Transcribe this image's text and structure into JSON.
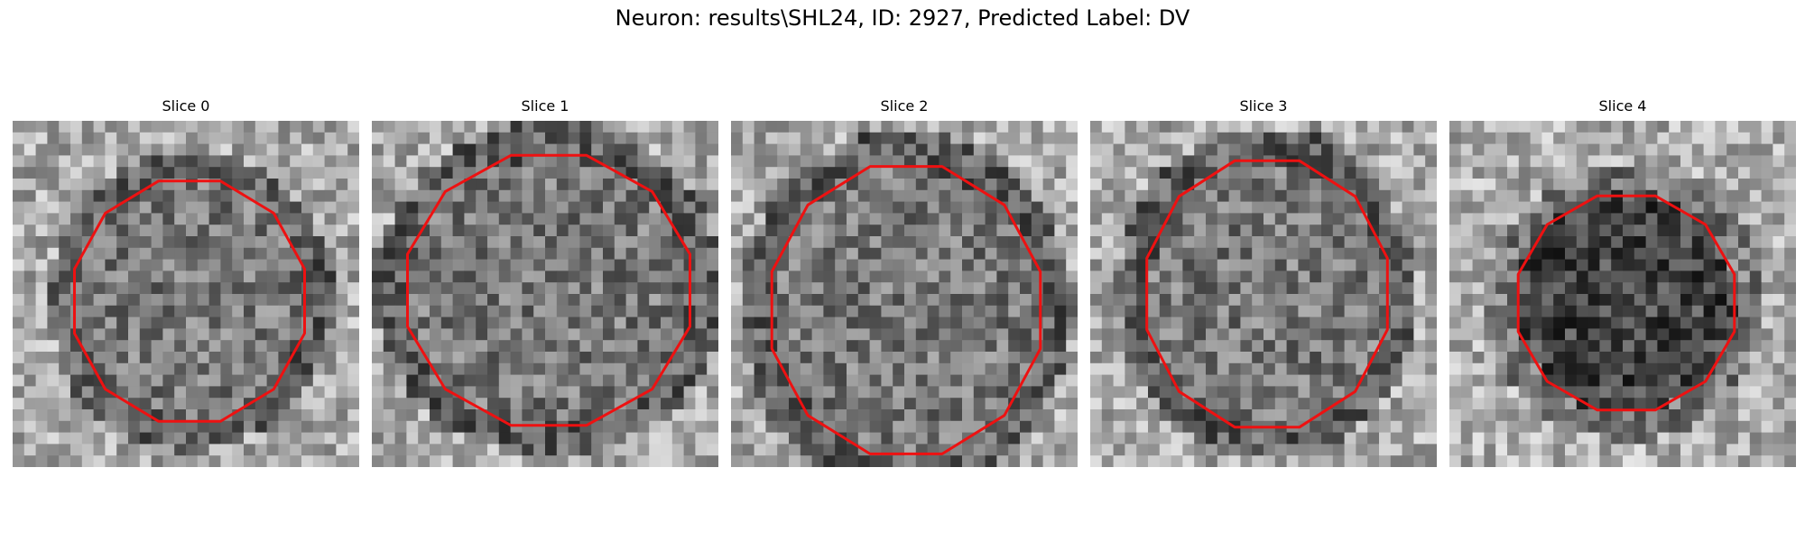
{
  "figure": {
    "title": "Neuron: results\\SHL24, ID: 2927, Predicted Label: DV"
  },
  "panels": [
    {
      "title": "Slice 0",
      "seed": 11,
      "darkCenter": false,
      "contour_color": "#ee1111"
    },
    {
      "title": "Slice 1",
      "seed": 23,
      "darkCenter": false,
      "contour_color": "#ee1111"
    },
    {
      "title": "Slice 2",
      "seed": 37,
      "darkCenter": false,
      "contour_color": "#ee1111"
    },
    {
      "title": "Slice 3",
      "seed": 41,
      "darkCenter": false,
      "contour_color": "#ee1111"
    },
    {
      "title": "Slice 4",
      "seed": 59,
      "darkCenter": true,
      "contour_color": "#ee1111"
    }
  ]
}
